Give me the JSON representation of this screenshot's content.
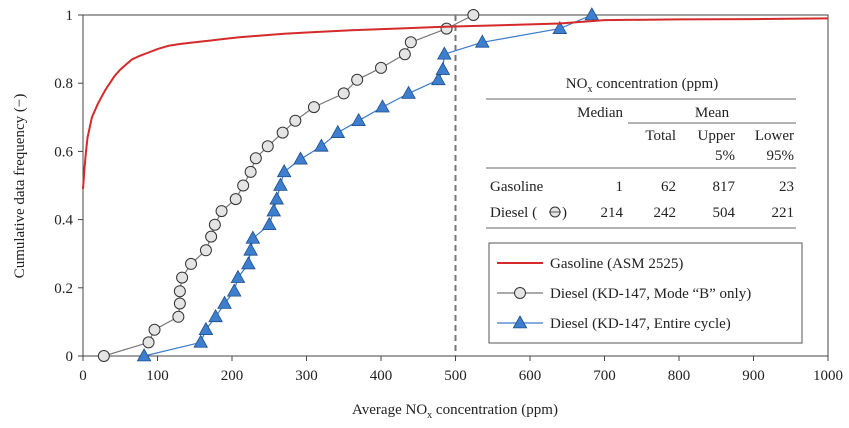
{
  "chart_data": {
    "type": "line",
    "xlabel": "Average NO",
    "xlabel_sub": "x",
    "xlabel_tail": " concentration (ppm)",
    "ylabel": "Cumulative data frequency (−)",
    "xlim": [
      0,
      1000
    ],
    "ylim": [
      0,
      1
    ],
    "x_ticks": [
      "0",
      "100",
      "200",
      "300",
      "400",
      "500",
      "600",
      "700",
      "800",
      "900",
      "1000"
    ],
    "y_ticks": [
      "0",
      "0.2",
      "0.4",
      "0.6",
      "0.8",
      "1"
    ],
    "reference_line_x": 500,
    "legend_position": "bottom-right",
    "series": [
      {
        "name": "Gasoline (ASM 2525)",
        "color": "#d42a2a",
        "marker": "none",
        "points": [
          [
            0,
            0.49
          ],
          [
            2,
            0.55
          ],
          [
            4,
            0.6
          ],
          [
            6,
            0.64
          ],
          [
            9,
            0.67
          ],
          [
            12,
            0.7
          ],
          [
            16,
            0.72
          ],
          [
            20,
            0.74
          ],
          [
            25,
            0.76
          ],
          [
            30,
            0.78
          ],
          [
            36,
            0.8
          ],
          [
            42,
            0.82
          ],
          [
            50,
            0.84
          ],
          [
            58,
            0.855
          ],
          [
            66,
            0.87
          ],
          [
            76,
            0.88
          ],
          [
            88,
            0.89
          ],
          [
            100,
            0.9
          ],
          [
            115,
            0.91
          ],
          [
            130,
            0.915
          ],
          [
            150,
            0.92
          ],
          [
            170,
            0.925
          ],
          [
            190,
            0.93
          ],
          [
            210,
            0.935
          ],
          [
            240,
            0.94
          ],
          [
            270,
            0.945
          ],
          [
            310,
            0.95
          ],
          [
            360,
            0.955
          ],
          [
            420,
            0.96
          ],
          [
            480,
            0.965
          ],
          [
            560,
            0.97
          ],
          [
            640,
            0.975
          ],
          [
            700,
            0.985
          ],
          [
            800,
            0.987
          ],
          [
            900,
            0.988
          ],
          [
            1000,
            0.99
          ]
        ]
      },
      {
        "name": "Diesel (KD-147, Mode “B” only)",
        "color": "#777777",
        "marker": "circle",
        "points": [
          [
            28,
            0
          ],
          [
            88,
            0.04
          ],
          [
            96,
            0.077
          ],
          [
            128,
            0.115
          ],
          [
            130,
            0.154
          ],
          [
            130,
            0.19
          ],
          [
            133,
            0.23
          ],
          [
            145,
            0.27
          ],
          [
            165,
            0.31
          ],
          [
            172,
            0.35
          ],
          [
            177,
            0.385
          ],
          [
            186,
            0.425
          ],
          [
            205,
            0.46
          ],
          [
            215,
            0.5
          ],
          [
            225,
            0.54
          ],
          [
            232,
            0.58
          ],
          [
            248,
            0.615
          ],
          [
            268,
            0.655
          ],
          [
            285,
            0.69
          ],
          [
            310,
            0.73
          ],
          [
            350,
            0.77
          ],
          [
            368,
            0.81
          ],
          [
            400,
            0.845
          ],
          [
            432,
            0.885
          ],
          [
            440,
            0.92
          ],
          [
            488,
            0.96
          ],
          [
            524,
            1.0
          ]
        ]
      },
      {
        "name": "Diesel (KD-147, Entire cycle)",
        "color": "#3a7ac8",
        "marker": "triangle",
        "points": [
          [
            82,
            0
          ],
          [
            158,
            0.04
          ],
          [
            165,
            0.077
          ],
          [
            178,
            0.115
          ],
          [
            190,
            0.154
          ],
          [
            203,
            0.19
          ],
          [
            208,
            0.23
          ],
          [
            222,
            0.27
          ],
          [
            225,
            0.31
          ],
          [
            228,
            0.345
          ],
          [
            250,
            0.385
          ],
          [
            256,
            0.425
          ],
          [
            260,
            0.46
          ],
          [
            265,
            0.5
          ],
          [
            270,
            0.54
          ],
          [
            292,
            0.577
          ],
          [
            320,
            0.615
          ],
          [
            342,
            0.655
          ],
          [
            370,
            0.69
          ],
          [
            402,
            0.73
          ],
          [
            437,
            0.77
          ],
          [
            477,
            0.81
          ],
          [
            483,
            0.84
          ],
          [
            485,
            0.885
          ],
          [
            536,
            0.92
          ],
          [
            640,
            0.96
          ],
          [
            683,
            1.0
          ]
        ]
      }
    ],
    "table": {
      "title": "NO",
      "title_sub": "x",
      "title_tail": " concentration (ppm)",
      "header1": [
        "Median",
        "Mean"
      ],
      "header2": [
        "Total",
        "Upper",
        "Lower"
      ],
      "header3": [
        "5%",
        "95%"
      ],
      "rows": [
        {
          "label": "Gasoline",
          "values": [
            "1",
            "62",
            "817",
            "23"
          ]
        },
        {
          "label": "Diesel (",
          "label_tail": ")",
          "values": [
            "214",
            "242",
            "504",
            "221"
          ]
        }
      ]
    }
  }
}
